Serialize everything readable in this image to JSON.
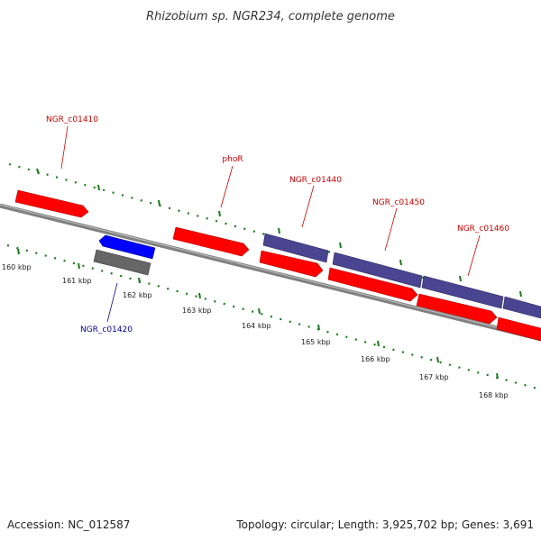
{
  "title": "Rhizobium sp. NGR234, complete genome",
  "footer": {
    "accession": "Accession: NC_012587",
    "summary": "Topology: circular; Length: 3,925,702 bp; Genes: 3,691"
  },
  "colors": {
    "forward_gene": "#ff0000",
    "reverse_gene": "#0000ff",
    "pseudo_gene": "#666666",
    "rna_gene": "#4a4590",
    "ticks": "#1a7a1a",
    "backbone": "#808080",
    "forward_label": "#cc0000",
    "reverse_label": "#000099"
  },
  "scale": {
    "tick_labels": [
      "160 kbp",
      "161 kbp",
      "162 kbp",
      "163 kbp",
      "164 kbp",
      "165 kbp",
      "166 kbp",
      "167 kbp",
      "168 kbp"
    ]
  },
  "gene_labels": [
    {
      "name": "NGR_c01410",
      "strand": "forward"
    },
    {
      "name": "phoR",
      "strand": "forward"
    },
    {
      "name": "NGR_c01440",
      "strand": "forward"
    },
    {
      "name": "NGR_c01450",
      "strand": "forward"
    },
    {
      "name": "NGR_c01460",
      "strand": "forward"
    },
    {
      "name": "NGR_c01420",
      "strand": "reverse"
    }
  ]
}
